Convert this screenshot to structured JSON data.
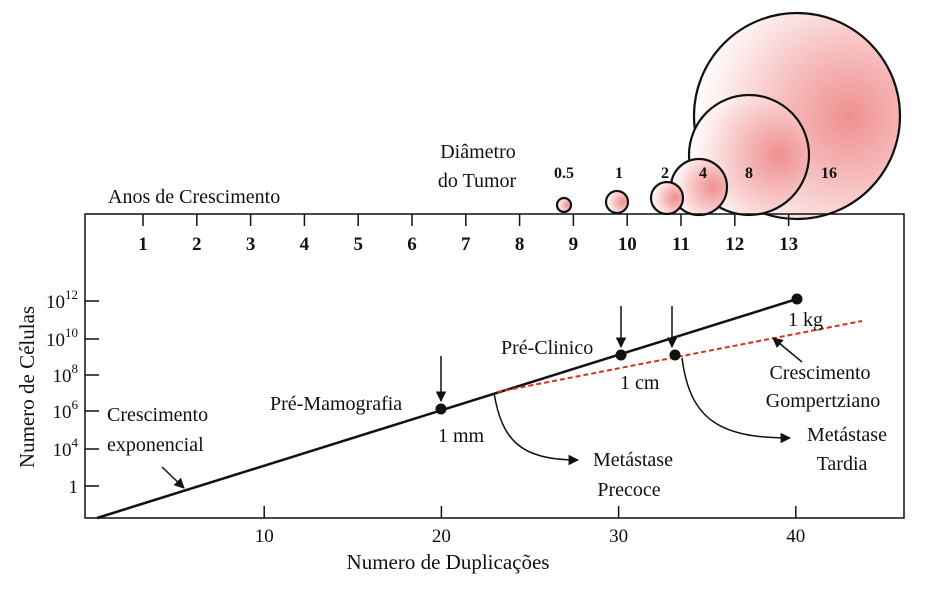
{
  "title_years": "Anos de Crescimento",
  "diameter_title": [
    "Diâmetro",
    "do  Tumor"
  ],
  "year_labels": [
    "1",
    "2",
    "3",
    "4",
    "5",
    "6",
    "7",
    "8",
    "9",
    "10",
    "11",
    "12",
    "13"
  ],
  "circles": [
    {
      "label": "0.5",
      "diameter_cm": 0.5
    },
    {
      "label": "1",
      "diameter_cm": 1
    },
    {
      "label": "2",
      "diameter_cm": 2
    },
    {
      "label": "4",
      "diameter_cm": 4
    },
    {
      "label": "8",
      "diameter_cm": 8
    },
    {
      "label": "16",
      "diameter_cm": 16
    }
  ],
  "y_axis": {
    "label": "Numero de Células",
    "ticks": [
      {
        "text": "1",
        "base": "1",
        "exp": ""
      },
      {
        "text": "10^4",
        "base": "10",
        "exp": "4"
      },
      {
        "text": "10^6",
        "base": "10",
        "exp": "6"
      },
      {
        "text": "10^8",
        "base": "10",
        "exp": "8"
      },
      {
        "text": "10^10",
        "base": "10",
        "exp": "10"
      },
      {
        "text": "10^12",
        "base": "10",
        "exp": "12"
      }
    ]
  },
  "x_axis": {
    "label": "Numero de Duplicações",
    "ticks": [
      "10",
      "20",
      "30",
      "40"
    ]
  },
  "points": [
    {
      "name": "pre-mamografia",
      "duplications": 20,
      "label": "Pré-Mamografia",
      "size": "1 mm"
    },
    {
      "name": "pre-clinico",
      "duplications": 30,
      "label": "Pré-Clinico",
      "size": "1 cm"
    },
    {
      "name": "end",
      "duplications": 40,
      "label": "",
      "size": "1 kg"
    }
  ],
  "annotations": {
    "exponential": [
      "Crescimento",
      "exponencial"
    ],
    "gompertz": [
      "Crescimento",
      "Gompertziano"
    ],
    "early_metastasis": [
      "Metástase",
      "Precoce"
    ],
    "late_metastasis": [
      "Metástase",
      "Tardia"
    ]
  },
  "colors": {
    "line": "#111111",
    "gompertz_line": "#d2331a",
    "circle_fill": "#f2a6a6"
  }
}
